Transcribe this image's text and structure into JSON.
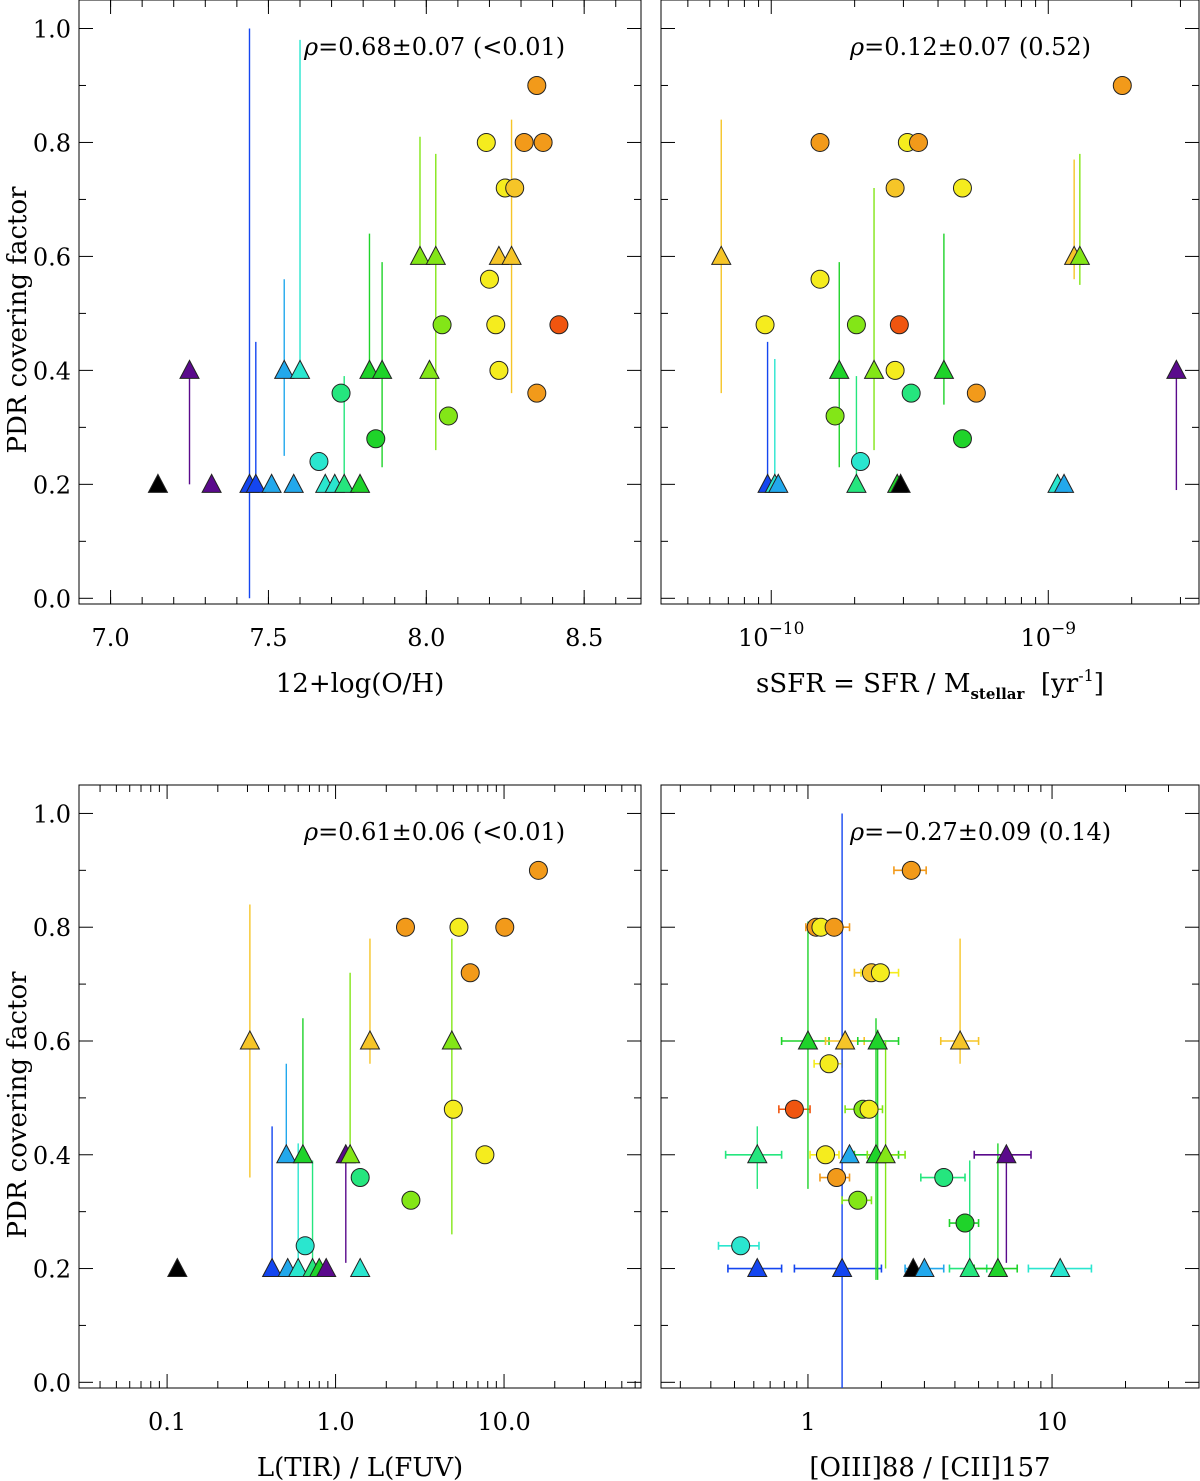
{
  "figure": {
    "ylabel": "PDR covering factor"
  },
  "colors": {
    "black": "#000000",
    "purple": "#5a0a8c",
    "blue": "#1446f0",
    "skyblue": "#22a8ec",
    "cyan": "#2ae6cf",
    "spring": "#25e67e",
    "green": "#1fd32a",
    "lime": "#83e617",
    "yellow": "#f5ec1e",
    "gold": "#f6c528",
    "orange": "#f29a1a",
    "red": "#f0550f"
  },
  "chart_data": [
    {
      "id": "oh",
      "type": "scatter",
      "xscale": "linear",
      "xlim": [
        6.9,
        8.68
      ],
      "ylim": [
        -0.01,
        1.05
      ],
      "xticks": [
        7.0,
        7.5,
        8.0,
        8.5
      ],
      "xticklabels": [
        "7.0",
        "7.5",
        "8.0",
        "8.5"
      ],
      "yticks": [
        0.0,
        0.2,
        0.4,
        0.6,
        0.8,
        1.0
      ],
      "yticklabels": [
        "0.0",
        "0.2",
        "0.4",
        "0.6",
        "0.8",
        "1.0"
      ],
      "xlabel": "12+log(O/H)",
      "rho_symbol": "ρ",
      "rho_text": "=0.68±0.07 (<0.01)",
      "points": [
        {
          "x": 7.15,
          "y": 0.2,
          "m": "tri",
          "c": "black"
        },
        {
          "x": 7.25,
          "y": 0.4,
          "m": "tri",
          "c": "purple",
          "ylo": 0.2
        },
        {
          "x": 7.32,
          "y": 0.2,
          "m": "tri",
          "c": "purple"
        },
        {
          "x": 7.44,
          "y": 0.2,
          "m": "tri",
          "c": "blue",
          "ylo": 0.0,
          "yhi": 1.0
        },
        {
          "x": 7.46,
          "y": 0.2,
          "m": "tri",
          "c": "blue",
          "yhi": 0.45
        },
        {
          "x": 7.51,
          "y": 0.2,
          "m": "tri",
          "c": "skyblue"
        },
        {
          "x": 7.55,
          "y": 0.4,
          "m": "tri",
          "c": "skyblue",
          "ylo": 0.25,
          "yhi": 0.56
        },
        {
          "x": 7.58,
          "y": 0.2,
          "m": "tri",
          "c": "skyblue"
        },
        {
          "x": 7.6,
          "y": 0.4,
          "m": "tri",
          "c": "cyan",
          "yhi": 0.98
        },
        {
          "x": 7.66,
          "y": 0.24,
          "m": "circ",
          "c": "cyan"
        },
        {
          "x": 7.68,
          "y": 0.2,
          "m": "tri",
          "c": "cyan"
        },
        {
          "x": 7.71,
          "y": 0.2,
          "m": "tri",
          "c": "cyan"
        },
        {
          "x": 7.73,
          "y": 0.36,
          "m": "circ",
          "c": "spring"
        },
        {
          "x": 7.74,
          "y": 0.2,
          "m": "tri",
          "c": "spring",
          "yhi": 0.39
        },
        {
          "x": 7.79,
          "y": 0.2,
          "m": "tri",
          "c": "green"
        },
        {
          "x": 7.82,
          "y": 0.4,
          "m": "tri",
          "c": "green",
          "yhi": 0.64
        },
        {
          "x": 7.84,
          "y": 0.28,
          "m": "circ",
          "c": "green"
        },
        {
          "x": 7.86,
          "y": 0.4,
          "m": "tri",
          "c": "green",
          "ylo": 0.23,
          "yhi": 0.59
        },
        {
          "x": 7.98,
          "y": 0.6,
          "m": "tri",
          "c": "lime",
          "yhi": 0.81
        },
        {
          "x": 8.01,
          "y": 0.4,
          "m": "tri",
          "c": "lime"
        },
        {
          "x": 8.03,
          "y": 0.6,
          "m": "tri",
          "c": "lime",
          "ylo": 0.26,
          "yhi": 0.78
        },
        {
          "x": 8.05,
          "y": 0.48,
          "m": "circ",
          "c": "lime"
        },
        {
          "x": 8.07,
          "y": 0.32,
          "m": "circ",
          "c": "lime"
        },
        {
          "x": 8.19,
          "y": 0.8,
          "m": "circ",
          "c": "yellow"
        },
        {
          "x": 8.2,
          "y": 0.56,
          "m": "circ",
          "c": "yellow"
        },
        {
          "x": 8.22,
          "y": 0.48,
          "m": "circ",
          "c": "yellow"
        },
        {
          "x": 8.23,
          "y": 0.4,
          "m": "circ",
          "c": "yellow"
        },
        {
          "x": 8.23,
          "y": 0.6,
          "m": "tri",
          "c": "gold"
        },
        {
          "x": 8.25,
          "y": 0.72,
          "m": "circ",
          "c": "yellow"
        },
        {
          "x": 8.27,
          "y": 0.6,
          "m": "tri",
          "c": "gold",
          "ylo": 0.36,
          "yhi": 0.84
        },
        {
          "x": 8.28,
          "y": 0.72,
          "m": "circ",
          "c": "gold"
        },
        {
          "x": 8.31,
          "y": 0.8,
          "m": "circ",
          "c": "orange"
        },
        {
          "x": 8.35,
          "y": 0.9,
          "m": "circ",
          "c": "orange"
        },
        {
          "x": 8.35,
          "y": 0.36,
          "m": "circ",
          "c": "orange"
        },
        {
          "x": 8.37,
          "y": 0.8,
          "m": "circ",
          "c": "orange"
        },
        {
          "x": 8.42,
          "y": 0.48,
          "m": "circ",
          "c": "red"
        }
      ]
    },
    {
      "id": "ssfr",
      "type": "scatter",
      "xscale": "log",
      "xlim": [
        4e-11,
        3.5e-09
      ],
      "ylim": [
        -0.01,
        1.05
      ],
      "xticks": [
        1e-10,
        1e-09
      ],
      "xticklabels": [
        [
          "10",
          "−10"
        ],
        [
          "10",
          "−9"
        ]
      ],
      "yticks": [
        0.0,
        0.2,
        0.4,
        0.6,
        0.8,
        1.0
      ],
      "xlabel_parts": [
        "sSFR = SFR / M",
        "stellar",
        " [yr",
        "-1",
        "]"
      ],
      "rho_symbol": "ρ",
      "rho_text": "=0.12±0.07 (0.52)",
      "points": [
        {
          "x": 6.6e-11,
          "y": 0.6,
          "m": "tri",
          "c": "gold",
          "ylo": 0.36,
          "yhi": 0.84
        },
        {
          "x": 9.5e-11,
          "y": 0.48,
          "m": "circ",
          "c": "yellow"
        },
        {
          "x": 9.7e-11,
          "y": 0.2,
          "m": "tri",
          "c": "blue",
          "yhi": 0.45
        },
        {
          "x": 1.03e-10,
          "y": 0.2,
          "m": "tri",
          "c": "cyan",
          "yhi": 0.42
        },
        {
          "x": 1.06e-10,
          "y": 0.2,
          "m": "tri",
          "c": "skyblue"
        },
        {
          "x": 1.5e-10,
          "y": 0.8,
          "m": "circ",
          "c": "orange"
        },
        {
          "x": 1.5e-10,
          "y": 0.56,
          "m": "circ",
          "c": "yellow"
        },
        {
          "x": 1.7e-10,
          "y": 0.32,
          "m": "circ",
          "c": "lime"
        },
        {
          "x": 1.76e-10,
          "y": 0.4,
          "m": "tri",
          "c": "green",
          "ylo": 0.23,
          "yhi": 0.59
        },
        {
          "x": 2.03e-10,
          "y": 0.48,
          "m": "circ",
          "c": "lime"
        },
        {
          "x": 2.03e-10,
          "y": 0.2,
          "m": "tri",
          "c": "spring",
          "yhi": 0.39
        },
        {
          "x": 2.1e-10,
          "y": 0.24,
          "m": "circ",
          "c": "cyan"
        },
        {
          "x": 2.35e-10,
          "y": 0.4,
          "m": "tri",
          "c": "lime",
          "ylo": 0.26,
          "yhi": 0.72
        },
        {
          "x": 2.8e-10,
          "y": 0.72,
          "m": "circ",
          "c": "gold"
        },
        {
          "x": 2.8e-10,
          "y": 0.4,
          "m": "circ",
          "c": "yellow"
        },
        {
          "x": 2.9e-10,
          "y": 0.48,
          "m": "circ",
          "c": "red"
        },
        {
          "x": 2.85e-10,
          "y": 0.2,
          "m": "tri",
          "c": "green"
        },
        {
          "x": 2.93e-10,
          "y": 0.2,
          "m": "tri",
          "c": "black"
        },
        {
          "x": 3.1e-10,
          "y": 0.8,
          "m": "circ",
          "c": "yellow"
        },
        {
          "x": 3.2e-10,
          "y": 0.36,
          "m": "circ",
          "c": "spring"
        },
        {
          "x": 3.4e-10,
          "y": 0.8,
          "m": "circ",
          "c": "orange"
        },
        {
          "x": 4.2e-10,
          "y": 0.4,
          "m": "tri",
          "c": "green",
          "ylo": 0.34,
          "yhi": 0.64
        },
        {
          "x": 4.9e-10,
          "y": 0.72,
          "m": "circ",
          "c": "yellow"
        },
        {
          "x": 4.9e-10,
          "y": 0.28,
          "m": "circ",
          "c": "green"
        },
        {
          "x": 5.5e-10,
          "y": 0.36,
          "m": "circ",
          "c": "orange"
        },
        {
          "x": 1.08e-09,
          "y": 0.2,
          "m": "tri",
          "c": "cyan"
        },
        {
          "x": 1.14e-09,
          "y": 0.2,
          "m": "tri",
          "c": "skyblue"
        },
        {
          "x": 1.24e-09,
          "y": 0.6,
          "m": "tri",
          "c": "gold",
          "ylo": 0.56,
          "yhi": 0.77
        },
        {
          "x": 1.3e-09,
          "y": 0.6,
          "m": "tri",
          "c": "lime",
          "ylo": 0.55,
          "yhi": 0.78
        },
        {
          "x": 1.85e-09,
          "y": 0.9,
          "m": "circ",
          "c": "orange"
        },
        {
          "x": 2.9e-09,
          "y": 0.4,
          "m": "tri",
          "c": "purple",
          "ylo": 0.19
        }
      ]
    },
    {
      "id": "tir",
      "type": "scatter",
      "xscale": "log",
      "xlim": [
        0.03,
        65
      ],
      "ylim": [
        -0.01,
        1.05
      ],
      "xticks": [
        0.1,
        1.0,
        10.0
      ],
      "xticklabels": [
        "0.1",
        "1.0",
        "10.0"
      ],
      "yticks": [
        0.0,
        0.2,
        0.4,
        0.6,
        0.8,
        1.0
      ],
      "yticklabels": [
        "0.0",
        "0.2",
        "0.4",
        "0.6",
        "0.8",
        "1.0"
      ],
      "xlabel": "L(TIR) / L(FUV)",
      "rho_symbol": "ρ",
      "rho_text": "=0.61±0.06 (<0.01)",
      "points": [
        {
          "x": 0.115,
          "y": 0.2,
          "m": "tri",
          "c": "black"
        },
        {
          "x": 0.31,
          "y": 0.6,
          "m": "tri",
          "c": "gold",
          "ylo": 0.36,
          "yhi": 0.84
        },
        {
          "x": 0.42,
          "y": 0.2,
          "m": "tri",
          "c": "blue",
          "yhi": 0.45
        },
        {
          "x": 0.51,
          "y": 0.4,
          "m": "tri",
          "c": "skyblue",
          "yhi": 0.56
        },
        {
          "x": 0.52,
          "y": 0.2,
          "m": "tri",
          "c": "skyblue"
        },
        {
          "x": 0.6,
          "y": 0.2,
          "m": "tri",
          "c": "cyan",
          "yhi": 0.42
        },
        {
          "x": 0.64,
          "y": 0.4,
          "m": "tri",
          "c": "green",
          "yhi": 0.64
        },
        {
          "x": 0.66,
          "y": 0.24,
          "m": "circ",
          "c": "cyan"
        },
        {
          "x": 0.73,
          "y": 0.2,
          "m": "tri",
          "c": "spring",
          "yhi": 0.39
        },
        {
          "x": 0.8,
          "y": 0.2,
          "m": "tri",
          "c": "green"
        },
        {
          "x": 0.88,
          "y": 0.2,
          "m": "tri",
          "c": "purple"
        },
        {
          "x": 1.15,
          "y": 0.4,
          "m": "tri",
          "c": "purple",
          "ylo": 0.21
        },
        {
          "x": 1.22,
          "y": 0.4,
          "m": "tri",
          "c": "lime",
          "yhi": 0.72
        },
        {
          "x": 1.4,
          "y": 0.2,
          "m": "tri",
          "c": "cyan"
        },
        {
          "x": 1.4,
          "y": 0.36,
          "m": "circ",
          "c": "spring"
        },
        {
          "x": 1.6,
          "y": 0.6,
          "m": "tri",
          "c": "gold",
          "ylo": 0.56,
          "yhi": 0.78
        },
        {
          "x": 2.6,
          "y": 0.8,
          "m": "circ",
          "c": "orange"
        },
        {
          "x": 2.8,
          "y": 0.32,
          "m": "circ",
          "c": "lime"
        },
        {
          "x": 4.9,
          "y": 0.6,
          "m": "tri",
          "c": "lime",
          "ylo": 0.26,
          "yhi": 0.78
        },
        {
          "x": 5.0,
          "y": 0.48,
          "m": "circ",
          "c": "yellow"
        },
        {
          "x": 5.4,
          "y": 0.8,
          "m": "circ",
          "c": "yellow"
        },
        {
          "x": 6.3,
          "y": 0.72,
          "m": "circ",
          "c": "orange"
        },
        {
          "x": 7.7,
          "y": 0.4,
          "m": "circ",
          "c": "yellow"
        },
        {
          "x": 10.1,
          "y": 0.8,
          "m": "circ",
          "c": "orange"
        },
        {
          "x": 16.0,
          "y": 0.9,
          "m": "circ",
          "c": "orange"
        }
      ]
    },
    {
      "id": "oiii",
      "type": "scatter",
      "xscale": "log",
      "xlim": [
        0.25,
        40
      ],
      "ylim": [
        -0.01,
        1.05
      ],
      "xticks": [
        1,
        10
      ],
      "xticklabels": [
        "1",
        "10"
      ],
      "yticks": [
        0.0,
        0.2,
        0.4,
        0.6,
        0.8,
        1.0
      ],
      "xlabel": "[OIII]88 / [CII]157",
      "rho_symbol": "ρ",
      "rho_text": "=−0.27±0.09 (0.14)",
      "points": [
        {
          "x": 0.53,
          "y": 0.24,
          "m": "circ",
          "c": "cyan",
          "xlo": 0.43,
          "xhi": 0.63
        },
        {
          "x": 0.62,
          "y": 0.2,
          "m": "tri",
          "c": "blue",
          "xlo": 0.47,
          "xhi": 0.78
        },
        {
          "x": 0.62,
          "y": 0.4,
          "m": "tri",
          "c": "spring",
          "xlo": 0.46,
          "xhi": 0.78,
          "ylo": 0.34,
          "yhi": 0.45
        },
        {
          "x": 0.88,
          "y": 0.48,
          "m": "circ",
          "c": "red",
          "xlo": 0.76,
          "xhi": 1.02
        },
        {
          "x": 1.0,
          "y": 0.6,
          "m": "tri",
          "c": "green",
          "xlo": 0.78,
          "xhi": 1.22,
          "ylo": 0.34,
          "yhi": 0.81
        },
        {
          "x": 1.08,
          "y": 0.8,
          "m": "circ",
          "c": "orange",
          "xlo": 0.98,
          "xhi": 1.18
        },
        {
          "x": 1.13,
          "y": 0.8,
          "m": "circ",
          "c": "yellow"
        },
        {
          "x": 1.18,
          "y": 0.4,
          "m": "circ",
          "c": "yellow",
          "xlo": 1.02,
          "xhi": 1.34
        },
        {
          "x": 1.22,
          "y": 0.56,
          "m": "circ",
          "c": "yellow",
          "xlo": 1.06,
          "xhi": 1.38
        },
        {
          "x": 1.28,
          "y": 0.8,
          "m": "circ",
          "c": "orange",
          "xlo": 1.12,
          "xhi": 1.48
        },
        {
          "x": 1.31,
          "y": 0.36,
          "m": "circ",
          "c": "orange",
          "xlo": 1.12,
          "xhi": 1.48
        },
        {
          "x": 1.38,
          "y": 0.2,
          "m": "tri",
          "c": "blue",
          "xlo": 0.88,
          "xhi": 2.0,
          "ylo": -0.01,
          "yhi": 1.0
        },
        {
          "x": 1.42,
          "y": 0.6,
          "m": "tri",
          "c": "gold",
          "xlo": 1.18,
          "xhi": 1.7
        },
        {
          "x": 1.48,
          "y": 0.4,
          "m": "tri",
          "c": "skyblue"
        },
        {
          "x": 1.6,
          "y": 0.32,
          "m": "circ",
          "c": "lime",
          "xlo": 1.38,
          "xhi": 1.82
        },
        {
          "x": 1.68,
          "y": 0.48,
          "m": "circ",
          "c": "lime",
          "xlo": 1.42,
          "xhi": 2.02
        },
        {
          "x": 1.78,
          "y": 0.48,
          "m": "circ",
          "c": "yellow"
        },
        {
          "x": 1.82,
          "y": 0.72,
          "m": "circ",
          "c": "gold",
          "xlo": 1.55,
          "xhi": 2.1
        },
        {
          "x": 1.9,
          "y": 0.4,
          "m": "tri",
          "c": "green",
          "xlo": 1.55,
          "xhi": 2.35,
          "ylo": 0.18,
          "yhi": 0.64
        },
        {
          "x": 1.93,
          "y": 0.6,
          "m": "tri",
          "c": "green",
          "xlo": 1.6,
          "xhi": 2.35,
          "ylo": 0.18,
          "yhi": 0.62
        },
        {
          "x": 1.98,
          "y": 0.72,
          "m": "circ",
          "c": "yellow",
          "xlo": 1.65,
          "xhi": 2.35
        },
        {
          "x": 2.08,
          "y": 0.4,
          "m": "tri",
          "c": "lime",
          "xlo": 1.75,
          "xhi": 2.5,
          "ylo": 0.2,
          "yhi": 0.6
        },
        {
          "x": 2.65,
          "y": 0.9,
          "m": "circ",
          "c": "orange",
          "xlo": 2.25,
          "xhi": 3.05
        },
        {
          "x": 2.7,
          "y": 0.2,
          "m": "tri",
          "c": "black"
        },
        {
          "x": 3.0,
          "y": 0.2,
          "m": "tri",
          "c": "skyblue",
          "xlo": 2.5,
          "xhi": 3.6
        },
        {
          "x": 3.6,
          "y": 0.36,
          "m": "circ",
          "c": "spring",
          "xlo": 2.9,
          "xhi": 4.4
        },
        {
          "x": 4.2,
          "y": 0.6,
          "m": "tri",
          "c": "gold",
          "xlo": 3.5,
          "xhi": 5.0,
          "ylo": 0.56,
          "yhi": 0.78
        },
        {
          "x": 4.4,
          "y": 0.28,
          "m": "circ",
          "c": "green",
          "xlo": 3.8,
          "xhi": 5.0
        },
        {
          "x": 4.6,
          "y": 0.2,
          "m": "tri",
          "c": "spring",
          "xlo": 3.8,
          "xhi": 5.4,
          "yhi": 0.39
        },
        {
          "x": 6.0,
          "y": 0.2,
          "m": "tri",
          "c": "green",
          "xlo": 4.8,
          "xhi": 7.2,
          "yhi": 0.42
        },
        {
          "x": 6.5,
          "y": 0.4,
          "m": "tri",
          "c": "purple",
          "xlo": 4.8,
          "xhi": 8.2,
          "ylo": 0.21
        },
        {
          "x": 10.8,
          "y": 0.2,
          "m": "tri",
          "c": "cyan",
          "xlo": 8.0,
          "xhi": 14.5
        }
      ]
    }
  ]
}
